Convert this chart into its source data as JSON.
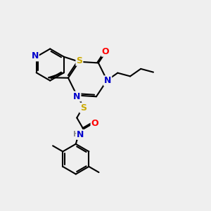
{
  "bg_color": "#efefef",
  "atom_colors": {
    "C": "#000000",
    "N": "#0000cc",
    "O": "#ff0000",
    "S": "#ccaa00",
    "H": "#888888"
  },
  "bond_color": "#000000",
  "bond_width": 1.5,
  "figsize": [
    3.0,
    3.0
  ],
  "dpi": 100,
  "xlim": [
    0,
    10
  ],
  "ylim": [
    0,
    10
  ]
}
